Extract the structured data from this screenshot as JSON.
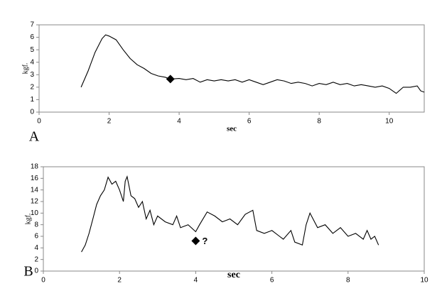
{
  "chart_data": [
    {
      "type": "line",
      "panel_label": "A",
      "x_label": "sec",
      "y_label": "kgf.",
      "color": "#000000",
      "x": [
        1.2,
        1.4,
        1.6,
        1.8,
        1.9,
        2.0,
        2.2,
        2.4,
        2.6,
        2.8,
        3.0,
        3.2,
        3.4,
        3.6,
        3.75,
        4.0,
        4.2,
        4.4,
        4.6,
        4.8,
        5.0,
        5.2,
        5.4,
        5.6,
        5.8,
        6.0,
        6.2,
        6.4,
        6.6,
        6.8,
        7.0,
        7.2,
        7.4,
        7.6,
        7.8,
        8.0,
        8.2,
        8.4,
        8.6,
        8.8,
        9.0,
        9.2,
        9.4,
        9.6,
        9.8,
        10.0,
        10.2,
        10.4,
        10.6,
        10.8,
        10.9,
        11.0
      ],
      "values": [
        2.0,
        3.3,
        4.8,
        5.9,
        6.2,
        6.1,
        5.8,
        5.0,
        4.3,
        3.8,
        3.5,
        3.1,
        2.9,
        2.8,
        2.65,
        2.7,
        2.6,
        2.7,
        2.4,
        2.6,
        2.5,
        2.6,
        2.5,
        2.6,
        2.4,
        2.6,
        2.4,
        2.2,
        2.4,
        2.6,
        2.5,
        2.3,
        2.4,
        2.3,
        2.1,
        2.3,
        2.2,
        2.4,
        2.2,
        2.3,
        2.1,
        2.2,
        2.1,
        2.0,
        2.1,
        1.9,
        1.5,
        2.0,
        2.0,
        2.1,
        1.7,
        1.6
      ],
      "marker": {
        "x": 3.75,
        "y": 2.65
      },
      "xlim": [
        0,
        11
      ],
      "ylim": [
        0,
        7
      ],
      "xticks": [
        0,
        2,
        4,
        6,
        8,
        10
      ],
      "yticks": [
        0,
        1,
        2,
        3,
        4,
        5,
        6,
        7
      ]
    },
    {
      "type": "line",
      "panel_label": "B",
      "x_label": "sec",
      "y_label": "kgf.",
      "color": "#000000",
      "x": [
        1.0,
        1.1,
        1.2,
        1.3,
        1.4,
        1.5,
        1.6,
        1.7,
        1.8,
        1.9,
        2.0,
        2.1,
        2.15,
        2.2,
        2.3,
        2.4,
        2.5,
        2.6,
        2.7,
        2.8,
        2.9,
        3.0,
        3.2,
        3.4,
        3.5,
        3.6,
        3.8,
        4.0,
        4.1,
        4.3,
        4.5,
        4.7,
        4.9,
        5.1,
        5.3,
        5.5,
        5.6,
        5.8,
        6.0,
        6.2,
        6.3,
        6.5,
        6.6,
        6.8,
        6.9,
        7.0,
        7.2,
        7.4,
        7.6,
        7.8,
        8.0,
        8.2,
        8.4,
        8.5,
        8.6,
        8.7,
        8.8
      ],
      "values": [
        3.3,
        4.5,
        6.5,
        9,
        11.5,
        13,
        14,
        16.2,
        15,
        15.5,
        14,
        12,
        15.5,
        16.3,
        13,
        12.5,
        11,
        12,
        9,
        10.5,
        8,
        9.5,
        8.5,
        8,
        9.5,
        7.5,
        8,
        6.8,
        8,
        10.2,
        9.5,
        8.5,
        9.0,
        8,
        9.8,
        10.5,
        7,
        6.5,
        7,
        6,
        5.5,
        7,
        5,
        4.5,
        8,
        10,
        7.5,
        8,
        6.5,
        7.5,
        6,
        6.5,
        5.5,
        7,
        5.5,
        6,
        4.5
      ],
      "marker": {
        "x": 4.0,
        "y": 5.2
      },
      "annotation": "?",
      "xlim": [
        0,
        10
      ],
      "ylim": [
        0,
        18
      ],
      "xticks": [
        0,
        2,
        4,
        6,
        8,
        10
      ],
      "yticks": [
        0,
        2,
        4,
        6,
        8,
        10,
        12,
        14,
        16,
        18
      ]
    }
  ]
}
